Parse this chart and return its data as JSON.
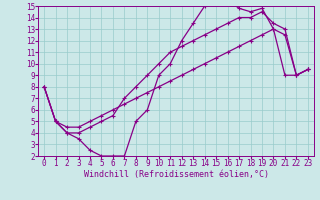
{
  "xlabel": "Windchill (Refroidissement éolien,°C)",
  "bg_color": "#cce8e8",
  "grid_color": "#99cccc",
  "line_color": "#880088",
  "spine_color": "#880088",
  "xlim": [
    -0.5,
    23.5
  ],
  "ylim": [
    2,
    15
  ],
  "xticks": [
    0,
    1,
    2,
    3,
    4,
    5,
    6,
    7,
    8,
    9,
    10,
    11,
    12,
    13,
    14,
    15,
    16,
    17,
    18,
    19,
    20,
    21,
    22,
    23
  ],
  "yticks": [
    2,
    3,
    4,
    5,
    6,
    7,
    8,
    9,
    10,
    11,
    12,
    13,
    14,
    15
  ],
  "line1_x": [
    0,
    1,
    2,
    3,
    4,
    5,
    6,
    7,
    8,
    9,
    10,
    11,
    12,
    13,
    14,
    15,
    16,
    17,
    18,
    19,
    20,
    21,
    22,
    23
  ],
  "line1_y": [
    8,
    5,
    4,
    3.5,
    2.5,
    2,
    2,
    2,
    5,
    6,
    9,
    10,
    12,
    13.5,
    15,
    15.2,
    15.5,
    14.8,
    14.5,
    14.8,
    13,
    12.5,
    9,
    9.5
  ],
  "line2_x": [
    0,
    1,
    2,
    3,
    4,
    5,
    6,
    7,
    8,
    9,
    10,
    11,
    12,
    13,
    14,
    15,
    16,
    17,
    18,
    19,
    20,
    21,
    22,
    23
  ],
  "line2_y": [
    8,
    5,
    4,
    4,
    4.5,
    5,
    5.5,
    7,
    8,
    9,
    10,
    11,
    11.5,
    12,
    12.5,
    13,
    13.5,
    14,
    14,
    14.5,
    13.5,
    13,
    9,
    9.5
  ],
  "line3_x": [
    0,
    1,
    2,
    3,
    4,
    5,
    6,
    7,
    8,
    9,
    10,
    11,
    12,
    13,
    14,
    15,
    16,
    17,
    18,
    19,
    20,
    21,
    22,
    23
  ],
  "line3_y": [
    8,
    5,
    4.5,
    4.5,
    5,
    5.5,
    6,
    6.5,
    7,
    7.5,
    8,
    8.5,
    9,
    9.5,
    10,
    10.5,
    11,
    11.5,
    12,
    12.5,
    13,
    9,
    9,
    9.5
  ],
  "marker": "+",
  "markersize": 3,
  "linewidth": 0.9,
  "xlabel_fontsize": 6,
  "tick_fontsize": 5.5
}
